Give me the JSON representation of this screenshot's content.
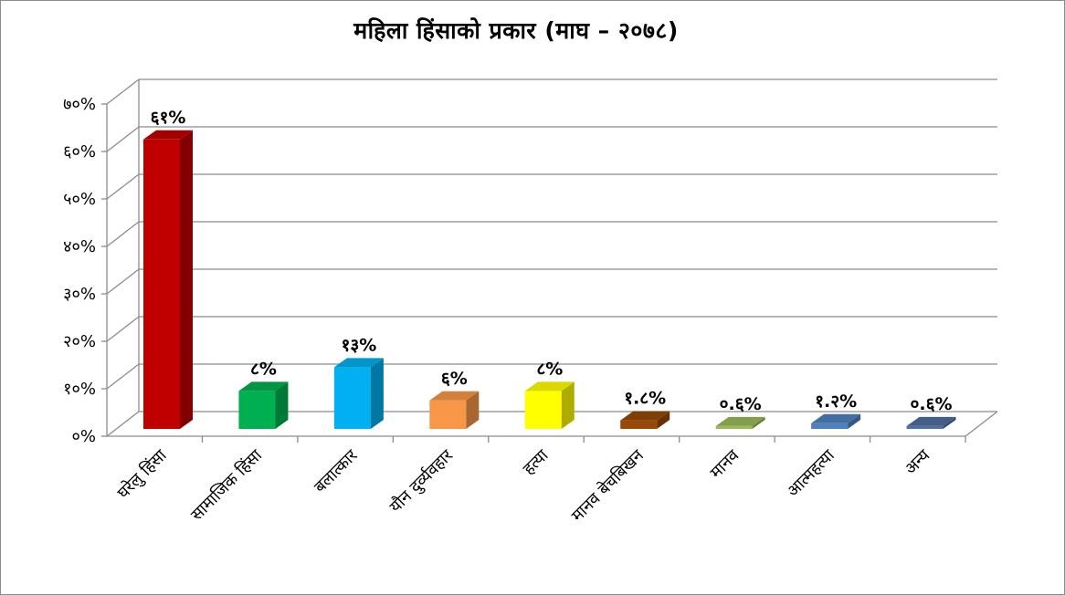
{
  "chart_data": {
    "type": "bar",
    "title": "महिला हिंसाको प्रकार (माघ – २०७८)",
    "categories": [
      "घरेलु हिंसा",
      "सामाजिक हिंसा",
      "बलात्कार",
      "यौन दुर्व्यवहार",
      "हत्या",
      "मानव बेचबिखन",
      "मानव",
      "आत्महत्या",
      "अन्य"
    ],
    "values": [
      61,
      8,
      13,
      6,
      8,
      1.8,
      0.6,
      1.2,
      0.6
    ],
    "data_labels": [
      "६१%",
      "८%",
      "१३%",
      "६%",
      "८%",
      "१.८%",
      "०.६%",
      "१.२%",
      "०.६%"
    ],
    "y_tick_labels": [
      "०%",
      "१०%",
      "२०%",
      "३०%",
      "४०%",
      "५०%",
      "६०%",
      "७०%"
    ],
    "ylim": [
      0,
      70
    ],
    "grid": true,
    "style": "3d-columns",
    "colors": [
      "#c00000",
      "#00b050",
      "#00b0f0",
      "#f79646",
      "#ffff00",
      "#984807",
      "#9bbb59",
      "#4f81bd",
      "#4f6fa0"
    ]
  }
}
